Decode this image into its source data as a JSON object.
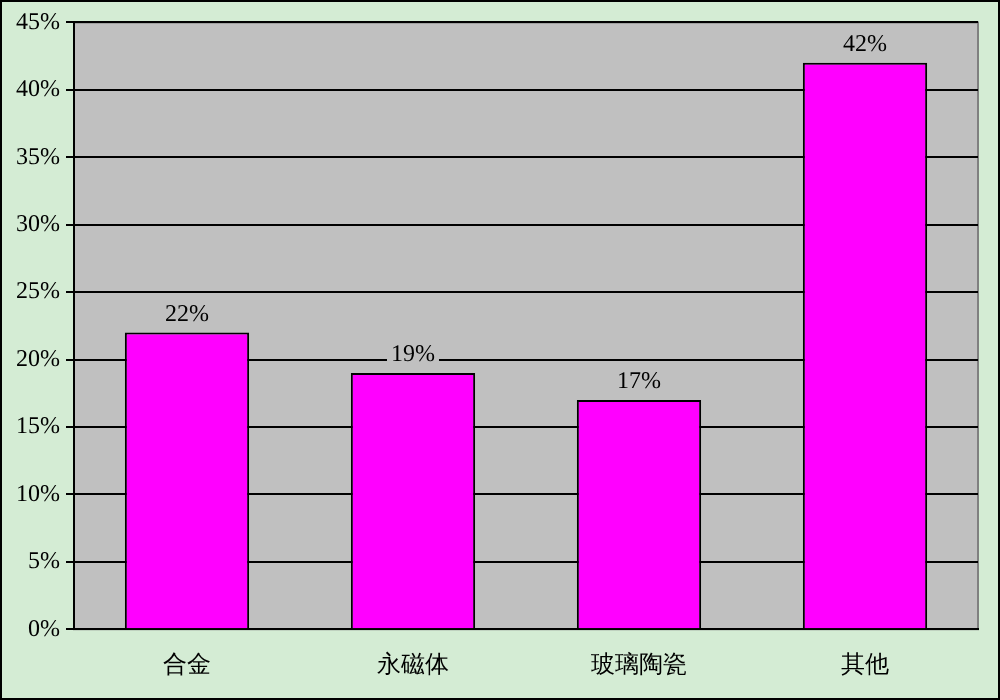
{
  "chart_data": {
    "type": "bar",
    "categories": [
      "合金",
      "永磁体",
      "玻璃陶瓷",
      "其他"
    ],
    "values": [
      22,
      19,
      17,
      42
    ],
    "color": "#ff00ff",
    "value_labels": [
      "22%",
      "19%",
      "17%",
      "42%"
    ],
    "ylim": [
      0,
      45
    ],
    "yticks": [
      {
        "value": 0,
        "label": "0%"
      },
      {
        "value": 5,
        "label": "5%"
      },
      {
        "value": 10,
        "label": "10%"
      },
      {
        "value": 15,
        "label": "15%"
      },
      {
        "value": 20,
        "label": "20%"
      },
      {
        "value": 25,
        "label": "25%"
      },
      {
        "value": 30,
        "label": "30%"
      },
      {
        "value": 35,
        "label": "35%"
      },
      {
        "value": 40,
        "label": "40%"
      },
      {
        "value": 45,
        "label": "45%"
      }
    ],
    "grid": "y",
    "legend": false
  }
}
